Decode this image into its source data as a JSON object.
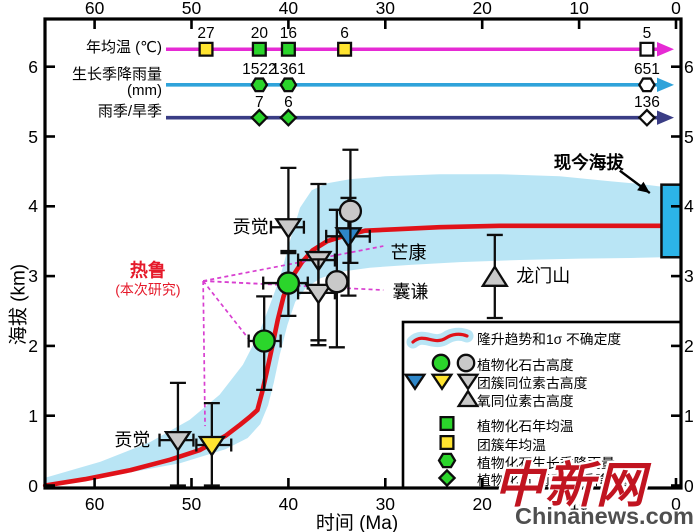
{
  "axes": {
    "x": {
      "title": "时间 (Ma)",
      "ticks": [
        60,
        50,
        40,
        30,
        20,
        10,
        0
      ],
      "range": [
        65.1,
        -0.5
      ],
      "mirrored_top": true
    },
    "y": {
      "title": "海拔 (km)",
      "ticks": [
        0,
        1,
        2,
        3,
        4,
        5,
        6
      ],
      "range": [
        0,
        6.72
      ],
      "mirrored_right": true
    }
  },
  "colors": {
    "curve_red": "#e01219",
    "band_blue": "#b9e5f5",
    "present_rect": "#2cb4e8",
    "magenta_line": "#e62ad4",
    "cyan_line": "#2fa3da",
    "navy_line": "#3a3d85",
    "green": "#2bd52b",
    "yellow": "#ffe430",
    "blue": "#2e86c8",
    "gray": "#c9c9c9",
    "white": "#ffffff",
    "dash_magenta": "#d83fd0",
    "label_red": "#e51a2b",
    "stroke": "#0d0d0d",
    "wm_red": "#c11420",
    "wm_gray": "#4f4f4f"
  },
  "climate_rows": [
    {
      "name": "annual-mean-temperature",
      "label_lines": [
        "年均温 (℃)"
      ],
      "color": "#e62ad4",
      "y_km": 6.25,
      "marker": "square",
      "points": [
        {
          "ma": 48.5,
          "value": "27",
          "fill": "yellow"
        },
        {
          "ma": 43.0,
          "value": "20",
          "fill": "green"
        },
        {
          "ma": 40.0,
          "value": "16",
          "fill": "green"
        },
        {
          "ma": 34.2,
          "value": "6",
          "fill": "yellow"
        },
        {
          "ma": 3.0,
          "value": "5",
          "fill": "white"
        }
      ]
    },
    {
      "name": "growing-season-rainfall",
      "label_lines": [
        "生长季降雨量",
        "(mm)"
      ],
      "color": "#2fa3da",
      "y_km": 5.74,
      "marker": "hexagon",
      "points": [
        {
          "ma": 43.0,
          "value": "1522",
          "fill": "green"
        },
        {
          "ma": 40.0,
          "value": "1361",
          "fill": "green"
        },
        {
          "ma": 3.0,
          "value": "651",
          "fill": "white"
        }
      ]
    },
    {
      "name": "wet-dry-season",
      "label_lines": [
        "雨季/旱季"
      ],
      "color": "#3a3d85",
      "y_km": 5.27,
      "marker": "diamond",
      "points": [
        {
          "ma": 43.0,
          "value": "7",
          "fill": "green"
        },
        {
          "ma": 40.0,
          "value": "6",
          "fill": "green"
        },
        {
          "ma": 3.0,
          "value": "136",
          "fill": "white"
        }
      ]
    }
  ],
  "chart_data": {
    "type": "line",
    "xlabel": "时间 (Ma)",
    "ylabel": "海拔 (km)",
    "x_ticks": [
      60,
      50,
      40,
      30,
      20,
      10,
      0
    ],
    "y_ticks": [
      0,
      1,
      2,
      3,
      4,
      5,
      6
    ],
    "legend_position": "inset bottom-right",
    "uplift_curve": {
      "label": "隆升趋势",
      "points_ma_km": [
        [
          65.1,
          0.0
        ],
        [
          61.0,
          0.09
        ],
        [
          56.3,
          0.22
        ],
        [
          52.2,
          0.37
        ],
        [
          49.1,
          0.51
        ],
        [
          46.5,
          0.71
        ],
        [
          45.0,
          0.87
        ],
        [
          44.0,
          0.98
        ],
        [
          43.2,
          1.08
        ],
        [
          42.7,
          1.34
        ],
        [
          42.2,
          1.65
        ],
        [
          41.7,
          1.97
        ],
        [
          41.1,
          2.37
        ],
        [
          40.5,
          2.71
        ],
        [
          39.7,
          2.97
        ],
        [
          38.6,
          3.2
        ],
        [
          37.5,
          3.37
        ],
        [
          36.0,
          3.5
        ],
        [
          34.4,
          3.57
        ],
        [
          32.1,
          3.65
        ],
        [
          29.0,
          3.67
        ],
        [
          24.4,
          3.7
        ],
        [
          18.2,
          3.72
        ],
        [
          10.9,
          3.72
        ],
        [
          3.7,
          3.72
        ],
        [
          1.4,
          3.72
        ]
      ]
    },
    "uncertainty_band": {
      "label": "1σ 不确定度",
      "upper_ma_km": [
        [
          65.1,
          0.11
        ],
        [
          59.4,
          0.34
        ],
        [
          54.3,
          0.62
        ],
        [
          50.2,
          0.94
        ],
        [
          47.1,
          1.3
        ],
        [
          44.7,
          1.73
        ],
        [
          43.1,
          2.16
        ],
        [
          41.9,
          2.59
        ],
        [
          40.9,
          2.97
        ],
        [
          39.8,
          3.52
        ],
        [
          38.8,
          3.98
        ],
        [
          37.6,
          4.23
        ],
        [
          36.0,
          4.33
        ],
        [
          33.6,
          4.39
        ],
        [
          30.0,
          4.43
        ],
        [
          24.4,
          4.46
        ],
        [
          18.2,
          4.46
        ],
        [
          12.0,
          4.43
        ],
        [
          6.8,
          4.36
        ],
        [
          3.7,
          4.32
        ],
        [
          1.4,
          4.28
        ]
      ],
      "lower_ma_km": [
        [
          65.1,
          0.0
        ],
        [
          57.4,
          0.16
        ],
        [
          51.2,
          0.32
        ],
        [
          46.5,
          0.52
        ],
        [
          44.2,
          0.68
        ],
        [
          42.9,
          0.88
        ],
        [
          42.1,
          1.15
        ],
        [
          41.5,
          1.48
        ],
        [
          40.9,
          1.87
        ],
        [
          40.1,
          2.3
        ],
        [
          39.3,
          2.63
        ],
        [
          38.2,
          2.83
        ],
        [
          36.7,
          2.97
        ],
        [
          34.7,
          3.06
        ],
        [
          31.6,
          3.12
        ],
        [
          27.4,
          3.16
        ],
        [
          22.3,
          3.2
        ],
        [
          16.1,
          3.23
        ],
        [
          9.9,
          3.25
        ],
        [
          4.7,
          3.26
        ],
        [
          1.4,
          3.27
        ]
      ]
    },
    "paleoelevation_points": [
      {
        "site": "贡觉",
        "shape": "triangle-down",
        "fill": "gray",
        "ma": 51.4,
        "km": 0.65,
        "km_lo": 0.0,
        "km_hi": 1.47,
        "ma_lo": 49.8,
        "ma_hi": 53.3
      },
      {
        "site": "热鲁",
        "shape": "triangle-down",
        "fill": "yellow",
        "ma": 47.9,
        "km": 0.58,
        "km_lo": 0.0,
        "km_hi": 1.18,
        "ma_lo": 45.9,
        "ma_hi": 49.5
      },
      {
        "site": "热鲁",
        "shape": "circle",
        "fill": "green",
        "ma": 42.5,
        "km": 2.07,
        "km_lo": 1.37,
        "km_hi": 2.71,
        "ma_lo": 40.8,
        "ma_hi": 44.1
      },
      {
        "site": "热鲁",
        "shape": "circle",
        "fill": "green",
        "ma": 40.0,
        "km": 2.9,
        "km_lo": 2.43,
        "km_hi": 3.33,
        "ma_lo": 38.0,
        "ma_hi": 42.6
      },
      {
        "site": "贡觉",
        "shape": "triangle-down",
        "fill": "gray",
        "ma": 40.0,
        "km": 3.7,
        "km_lo": 3.36,
        "km_hi": 4.55,
        "ma_lo": 38.4,
        "ma_hi": 41.8
      },
      {
        "site": "芒康",
        "shape": "triangle-down",
        "fill": "gray",
        "ma": 36.9,
        "km": 3.23,
        "km_lo": 2.08,
        "km_hi": 4.32,
        "ma_lo": 35.2,
        "ma_hi": 39.0
      },
      {
        "site": "芒康",
        "shape": "triangle-down",
        "fill": "gray",
        "ma": 36.9,
        "km": 2.76,
        "km_lo": 2.01,
        "km_hi": 3.24,
        "ma_lo": 35.2,
        "ma_hi": 39.0
      },
      {
        "site": "囊谦",
        "shape": "circle",
        "fill": "gray",
        "ma": 35.0,
        "km": 2.92,
        "km_lo": 1.98,
        "km_hi": 3.95
      },
      {
        "site": "芒康",
        "shape": "triangle-down",
        "fill": "blue",
        "ma": 33.8,
        "km": 3.57,
        "km_lo": 2.72,
        "km_hi": 4.12,
        "ma_lo": 31.6,
        "ma_hi": 36.1
      },
      {
        "site": "芒康",
        "shape": "circle",
        "fill": "gray",
        "ma": 33.6,
        "km": 3.93,
        "km_lo": 3.19,
        "km_hi": 4.81
      },
      {
        "site": "龙门山",
        "shape": "triangle-up",
        "fill": "gray",
        "ma": 18.7,
        "km": 2.99,
        "km_lo": 2.4,
        "km_hi": 3.59
      }
    ],
    "present_elevation": {
      "label": "现今海拔",
      "ma_from": 1.5,
      "ma_to": 0,
      "km_lo": 3.27,
      "km_hi": 4.31
    }
  },
  "dashed_links": {
    "hub": {
      "ma": 48.8,
      "km": 2.93
    },
    "targets": [
      {
        "ma": 42.9,
        "km": 2.89
      },
      {
        "ma": 44.1,
        "km": 2.1
      },
      {
        "ma": 48.6,
        "km": 0.85
      },
      {
        "ma": 30.2,
        "km": 3.43
      },
      {
        "ma": 30.2,
        "km": 2.8
      }
    ]
  },
  "site_labels": [
    {
      "text": "贡觉",
      "ma": 56.1,
      "km": 0.67,
      "style": "black"
    },
    {
      "text": "热鲁",
      "sub": "(本次研究)",
      "ma": 54.5,
      "km": 2.98,
      "style": "red"
    },
    {
      "text": "贡觉",
      "ma": 43.9,
      "km": 3.72,
      "style": "black"
    },
    {
      "text": "芒康",
      "ma": 27.6,
      "km": 3.35,
      "style": "black"
    },
    {
      "text": "囊谦",
      "ma": 27.4,
      "km": 2.79,
      "style": "black"
    },
    {
      "text": "龙门山",
      "ma": 13.7,
      "km": 3.02,
      "style": "black"
    },
    {
      "text": "现今海拔",
      "ma": 9.0,
      "km": 4.63,
      "style": "bold",
      "arrow": {
        "from_ma": 5.8,
        "from_km": 4.51,
        "to_ma": 2.7,
        "to_km": 4.19
      }
    }
  ],
  "legend": {
    "rows": [
      {
        "symbol": "trend-band",
        "label": "隆升趋势和1σ 不确定度"
      },
      {
        "symbol": "circles-green-gray",
        "label": "植物化石古高度"
      },
      {
        "symbol": "triangles-down-blue-yellow-gray",
        "label": "团簇同位素古高度"
      },
      {
        "symbol": "triangle-up-gray",
        "label": "氧同位素古高度"
      },
      {
        "symbol": "square-green",
        "label": "植物化石年均温"
      },
      {
        "symbol": "square-yellow",
        "label": "团簇年均温"
      },
      {
        "symbol": "hexagon-green",
        "label": "植物化石生长季降雨量"
      },
      {
        "symbol": "diamond-green",
        "label": "植物化石 雨季/旱季降雨量"
      }
    ]
  },
  "watermark": {
    "cn": "中新网",
    "en": "Chinanews.com"
  }
}
